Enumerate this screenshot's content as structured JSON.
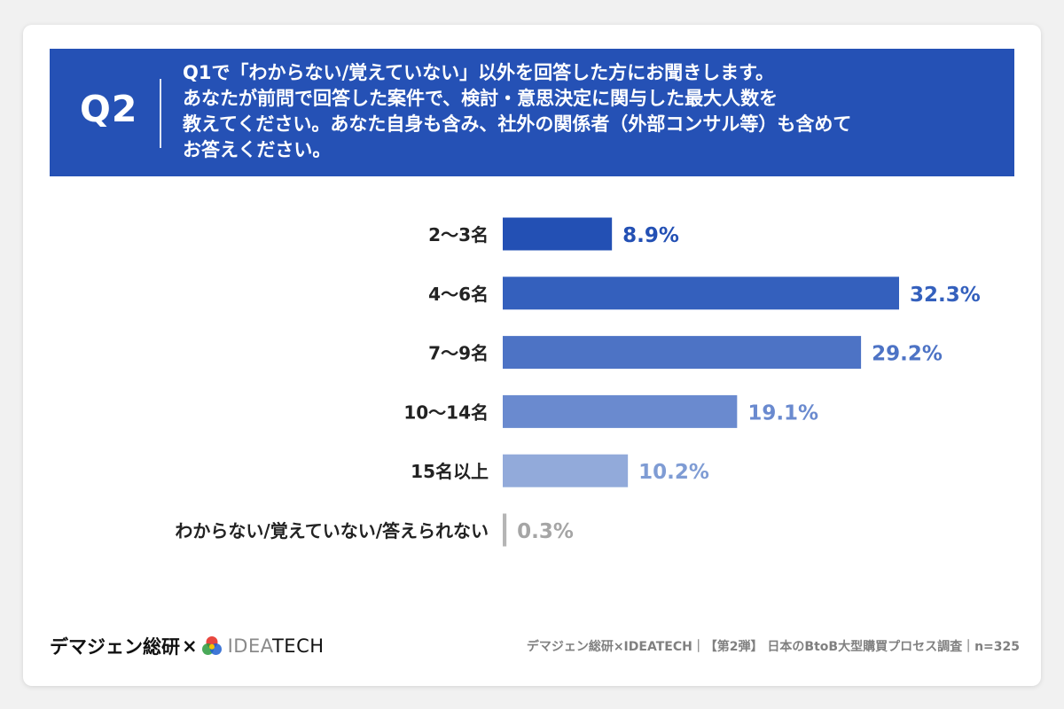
{
  "header": {
    "question_number": "Q2",
    "question_lines": [
      "Q1で「わからない/覚えていない」以外を回答した方にお聞きします。",
      "あなたが前問で回答した案件で、検討・意思決定に関与した最大人数を",
      "教えてください。あなた自身も含み、社外の関係者（外部コンサル等）も含めて",
      "お答えください。"
    ],
    "background_color": "#2551b5"
  },
  "chart_data": {
    "type": "bar",
    "orientation": "horizontal",
    "categories": [
      "2〜3名",
      "4〜6名",
      "7〜9名",
      "10〜14名",
      "15名以上",
      "わからない/覚えていない/答えられない"
    ],
    "values": [
      8.9,
      32.3,
      29.2,
      19.1,
      10.2,
      0.3
    ],
    "value_labels": [
      "8.9%",
      "32.3%",
      "29.2%",
      "19.1%",
      "10.2%",
      "0.3%"
    ],
    "unit": "%",
    "bar_colors": [
      "#2350b4",
      "#3460bd",
      "#4d73c5",
      "#6a8acf",
      "#92aada",
      "#b5b5b5"
    ],
    "label_colors": [
      "#2350b4",
      "#3460bd",
      "#4d73c5",
      "#6a8acf",
      "#7f9cd4",
      "#a5a5a5"
    ],
    "title": "",
    "xlabel": "",
    "ylabel": "",
    "xlim": [
      0,
      32.3
    ],
    "grid": false,
    "legend": "none"
  },
  "footer": {
    "brand_jp": "デマジェン総研",
    "brand_x": "×",
    "brand_en_light": "IDEA",
    "brand_en_dark": "TECH",
    "icon": "ideatech-color-wheel-icon",
    "source": "デマジェン総研×IDEATECH｜【第2弾】 日本のBtoB大型購買プロセス調査｜n=325"
  }
}
